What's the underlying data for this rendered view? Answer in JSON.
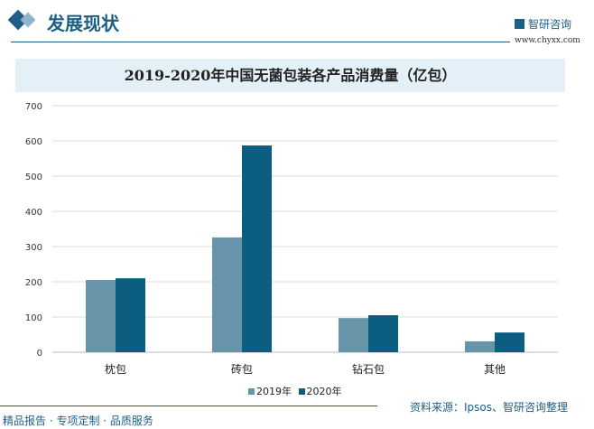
{
  "header": {
    "title": "发展现状",
    "logo_text": "智研咨询",
    "url": "www.chyxx.com"
  },
  "chart_data": {
    "type": "bar",
    "title": "2019-2020年中国无菌包装各产品消费量（亿包）",
    "categories": [
      "枕包",
      "砖包",
      "钻石包",
      "其他"
    ],
    "series": [
      {
        "name": "2019年",
        "values": [
          205,
          326,
          97,
          31
        ],
        "color": "#6794a8"
      },
      {
        "name": "2020年",
        "values": [
          210,
          587,
          105,
          56
        ],
        "color": "#0b5e80"
      }
    ],
    "ylim": [
      0,
      700
    ],
    "yticks": [
      "0",
      "100",
      "200",
      "300",
      "400",
      "500",
      "600",
      "700"
    ],
    "grid": true,
    "legend": "bottom"
  },
  "source": "资料来源：Ipsos、智研咨询整理",
  "footer": "精品报告 · 专项定制 · 品质服务"
}
